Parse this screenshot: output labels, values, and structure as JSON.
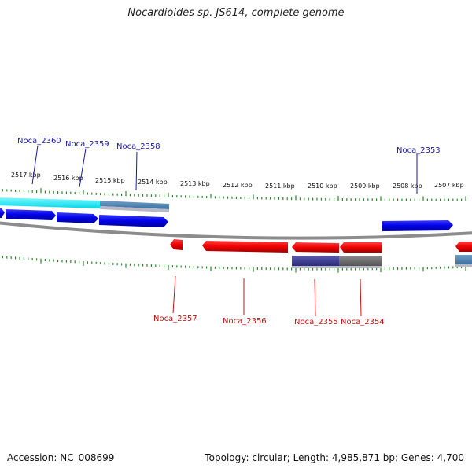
{
  "title": "Nocardioides sp. JS614, complete genome",
  "footer": {
    "accession": "Accession: NC_008699",
    "summary": "Topology: circular; Length: 4,985,871 bp; Genes: 4,700"
  },
  "colors": {
    "forward_gene": "#0000ee",
    "reverse_gene": "#ee0000",
    "tick": "#2a8a2a",
    "backbone": "#888888",
    "label_forward": "#1a1aa0",
    "label_reverse": "#c81010"
  },
  "scale": {
    "ticks_kbp": [
      "2517 kbp",
      "2516 kbp",
      "2515 kbp",
      "2514 kbp",
      "2513 kbp",
      "2512 kbp",
      "2511 kbp",
      "2510 kbp",
      "2509 kbp",
      "2508 kbp",
      "2507 kbp"
    ]
  },
  "genes_forward": [
    {
      "name": "Noca_2360"
    },
    {
      "name": "Noca_2359"
    },
    {
      "name": "Noca_2358"
    },
    {
      "name": "Noca_2353"
    }
  ],
  "genes_reverse": [
    {
      "name": "Noca_2357"
    },
    {
      "name": "Noca_2356"
    },
    {
      "name": "Noca_2355"
    },
    {
      "name": "Noca_2354"
    }
  ]
}
